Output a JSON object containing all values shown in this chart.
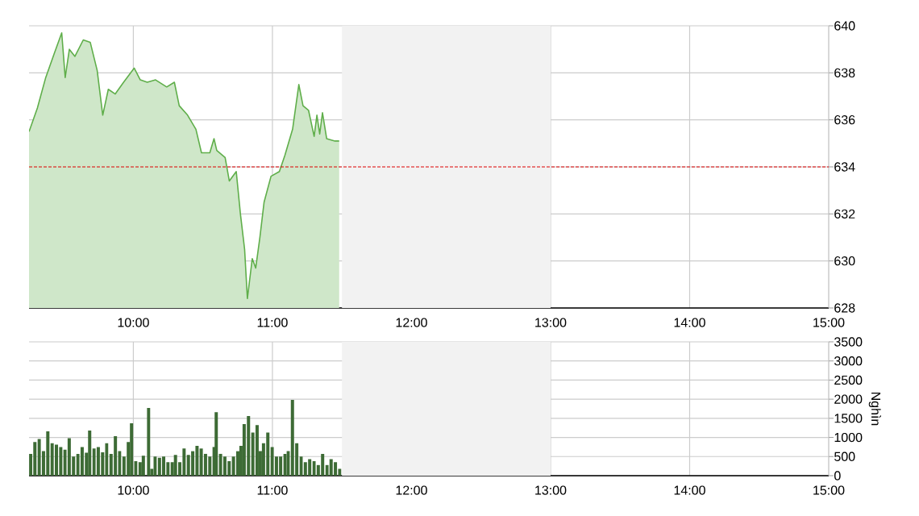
{
  "chart_data": [
    {
      "type": "area",
      "color": "#5fae4a",
      "x": [
        9.25,
        9.31,
        9.37,
        9.43,
        9.485,
        9.51,
        9.54,
        9.58,
        9.64,
        9.69,
        9.74,
        9.78,
        9.82,
        9.87,
        9.93,
        10.006,
        10.05,
        10.1,
        10.16,
        10.24,
        10.295,
        10.33,
        10.39,
        10.45,
        10.49,
        10.55,
        10.58,
        10.6,
        10.66,
        10.69,
        10.74,
        10.77,
        10.8,
        10.82,
        10.855,
        10.88,
        10.91,
        10.94,
        10.99,
        11.05,
        11.09,
        11.145,
        11.19,
        11.22,
        11.26,
        11.3,
        11.32,
        11.34,
        11.36,
        11.39,
        11.45,
        11.48
      ],
      "values": [
        635.5,
        636.5,
        637.8,
        638.8,
        639.7,
        637.8,
        639.0,
        638.7,
        639.4,
        639.3,
        638.1,
        636.2,
        637.3,
        637.1,
        637.6,
        638.2,
        637.7,
        637.6,
        637.7,
        637.4,
        637.6,
        636.6,
        636.2,
        635.6,
        634.6,
        634.6,
        635.2,
        634.7,
        634.4,
        633.4,
        633.8,
        632.0,
        630.5,
        628.4,
        630.1,
        629.7,
        631.0,
        632.5,
        633.6,
        633.8,
        634.5,
        635.6,
        637.5,
        636.6,
        636.4,
        635.3,
        636.2,
        635.4,
        636.3,
        635.2,
        635.1,
        635.1
      ],
      "xlim": [
        9.25,
        15
      ],
      "ylim": [
        628,
        640
      ],
      "xticks": [
        {
          "value": 10,
          "label": "10:00"
        },
        {
          "value": 11,
          "label": "11:00"
        },
        {
          "value": 12,
          "label": "12:00"
        },
        {
          "value": 13,
          "label": "13:00"
        },
        {
          "value": 14,
          "label": "14:00"
        },
        {
          "value": 15,
          "label": "15:00"
        }
      ],
      "yticks": [
        628,
        630,
        632,
        634,
        636,
        638,
        640
      ],
      "ref_lines": [
        {
          "axis": "y",
          "value": 634,
          "color": "#dd0000",
          "line_style": "dashed"
        }
      ],
      "bands": [
        {
          "axis": "x",
          "from": 11.5,
          "to": 13,
          "color": "#f2f2f2"
        }
      ],
      "grid": true
    },
    {
      "type": "bar",
      "color": "#3d6b35",
      "ylabel": "Nghìn",
      "x": [
        9.262,
        9.292,
        9.323,
        9.354,
        9.385,
        9.416,
        9.447,
        9.478,
        9.508,
        9.539,
        9.57,
        9.601,
        9.632,
        9.663,
        9.686,
        9.717,
        9.748,
        9.779,
        9.809,
        9.84,
        9.871,
        9.902,
        9.933,
        9.964,
        9.987,
        10.018,
        10.049,
        10.072,
        10.11,
        10.133,
        10.157,
        10.188,
        10.218,
        10.249,
        10.28,
        10.303,
        10.334,
        10.365,
        10.396,
        10.427,
        10.458,
        10.488,
        10.519,
        10.55,
        10.581,
        10.596,
        10.627,
        10.658,
        10.689,
        10.72,
        10.751,
        10.774,
        10.797,
        10.828,
        10.859,
        10.89,
        10.913,
        10.936,
        10.967,
        10.998,
        11.029,
        11.059,
        11.09,
        11.113,
        11.144,
        11.175,
        11.206,
        11.237,
        11.268,
        11.299,
        11.33,
        11.361,
        11.392,
        11.422,
        11.453,
        11.484
      ],
      "values": [
        570,
        880,
        960,
        640,
        1160,
        850,
        810,
        750,
        680,
        980,
        500,
        570,
        750,
        600,
        1180,
        710,
        750,
        610,
        850,
        570,
        1030,
        640,
        500,
        880,
        1370,
        380,
        350,
        520,
        1770,
        180,
        500,
        470,
        500,
        350,
        350,
        540,
        350,
        710,
        540,
        640,
        780,
        710,
        570,
        500,
        750,
        1660,
        570,
        500,
        380,
        500,
        640,
        780,
        1350,
        1560,
        1130,
        1320,
        640,
        850,
        1130,
        750,
        500,
        500,
        570,
        640,
        1980,
        850,
        500,
        350,
        430,
        380,
        280,
        570,
        280,
        430,
        350,
        180
      ],
      "xlim": [
        9.25,
        15
      ],
      "ylim": [
        0,
        3500
      ],
      "xticks": [
        {
          "value": 10,
          "label": "10:00"
        },
        {
          "value": 11,
          "label": "11:00"
        },
        {
          "value": 12,
          "label": "12:00"
        },
        {
          "value": 13,
          "label": "13:00"
        },
        {
          "value": 14,
          "label": "14:00"
        },
        {
          "value": 15,
          "label": "15:00"
        }
      ],
      "yticks": [
        0,
        500,
        1000,
        1500,
        2000,
        2500,
        3000,
        3500
      ],
      "bands": [
        {
          "axis": "x",
          "from": 11.5,
          "to": 13,
          "color": "#f2f2f2"
        }
      ],
      "grid": true
    }
  ]
}
